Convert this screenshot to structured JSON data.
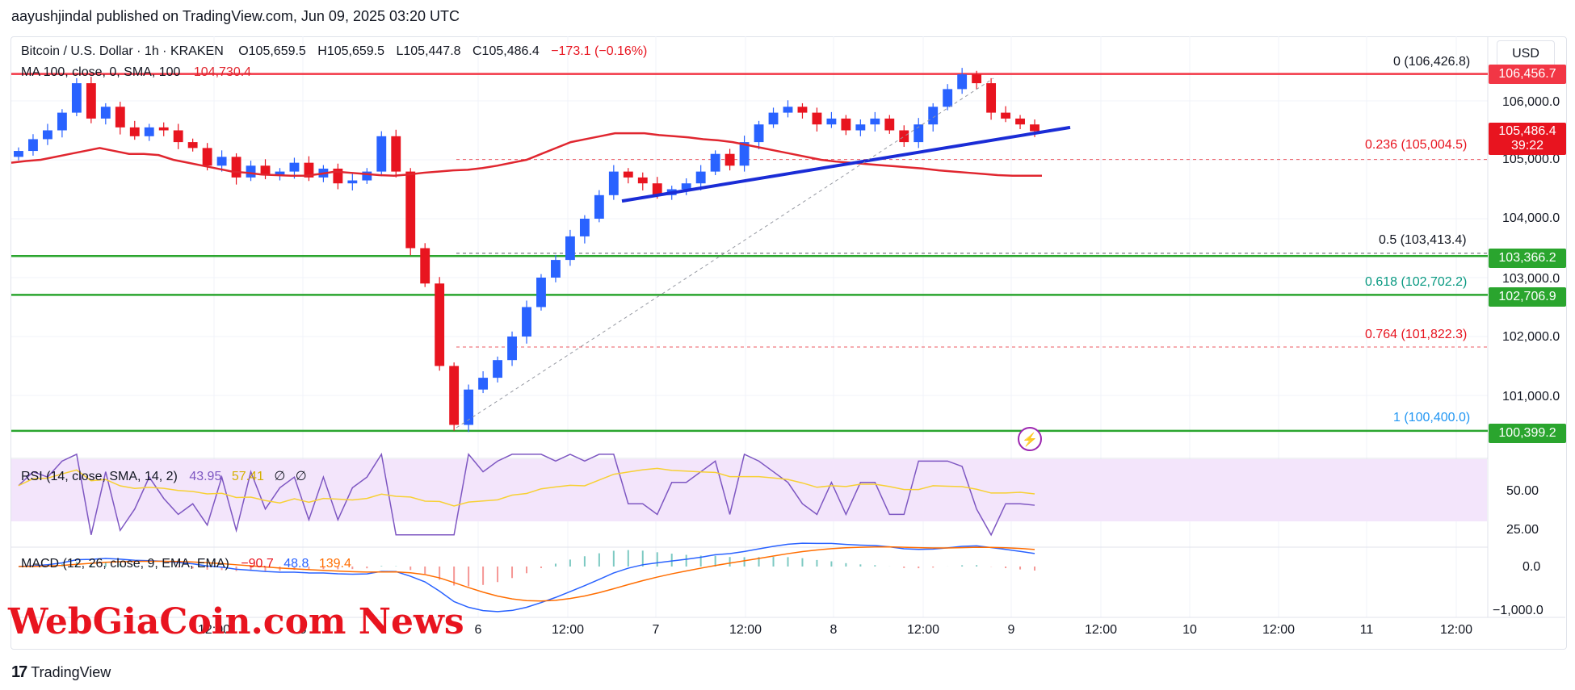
{
  "header": {
    "publisher": "aayushjindal published on TradingView.com, Jun 09, 2025 03:20 UTC"
  },
  "legend": {
    "symbol": "Bitcoin / U.S. Dollar · 1h · KRAKEN",
    "open": "O105,659.5",
    "high": "H105,659.5",
    "low": "L105,447.8",
    "close": "C105,486.4",
    "change": "−173.1 (−0.16%)",
    "ma_label": "MA 100, close, 0, SMA, 100",
    "ma_value": "104,730.4"
  },
  "currency_button": "USD",
  "price_ticks": [
    "106,000.0",
    "105,000.0",
    "104,000.0",
    "103,000.0",
    "102,000.0",
    "101,000.0"
  ],
  "axis_tags": {
    "resistance": "106,456.7",
    "current_price": "105,486.4",
    "countdown": "39:22",
    "support_1": "103,366.2",
    "support_2": "102,706.9",
    "low": "100,399.2"
  },
  "fibonacci": [
    {
      "level": "0",
      "price": "(106,426.8)",
      "color": "#787b86"
    },
    {
      "level": "0.236",
      "price": "(105,004.5)",
      "color": "#e8141f"
    },
    {
      "level": "0.5",
      "price": "(103,413.4)",
      "color": "#131722"
    },
    {
      "level": "0.618",
      "price": "(102,702.2)",
      "color": "#089981"
    },
    {
      "level": "0.764",
      "price": "(101,822.3)",
      "color": "#e8141f"
    },
    {
      "level": "1",
      "price": "(100,400.0)",
      "color": "#2196f3"
    }
  ],
  "rsi": {
    "label": "RSI (14, close, SMA, 14, 2)",
    "value": "43.95",
    "sma_value": "57.41",
    "extra1": "∅",
    "extra2": "∅",
    "ticks": [
      "50.00",
      "25.00"
    ]
  },
  "macd": {
    "label": "MACD (12, 26, close, 9, EMA, EMA)",
    "hist": "−90.7",
    "macd": "48.8",
    "signal": "139.4",
    "ticks": [
      "0.0",
      "−1,000.0"
    ]
  },
  "time_ticks": [
    "12:00",
    "5",
    "6",
    "12:00",
    "7",
    "12:00",
    "8",
    "12:00",
    "9",
    "12:00",
    "10",
    "12:00",
    "11",
    "12:00"
  ],
  "watermark": "WebGiaCoin.com News",
  "footer": {
    "brand": "TradingView",
    "logo": "17"
  },
  "colors": {
    "up": "#2962ff",
    "down": "#e8141f",
    "ma": "#e0262f",
    "trendline": "#1a2cd6",
    "support": "#2aa52e",
    "resistance": "#f23645",
    "rsi_bg": "#f3e5fb",
    "rsi_line": "#7e57c2",
    "rsi_sma": "#f7d034"
  },
  "chart_data": {
    "type": "candlestick",
    "symbol": "Bitcoin / U.S. Dollar",
    "interval": "1h",
    "x_ticks": [
      "12:00",
      "5",
      "6",
      "12:00",
      "7",
      "12:00",
      "8",
      "12:00",
      "9",
      "12:00",
      "10",
      "12:00",
      "11",
      "12:00"
    ],
    "y_range": [
      99800,
      106900
    ],
    "close_path": [
      105150,
      105350,
      105500,
      105800,
      106300,
      105700,
      105900,
      105550,
      105400,
      105550,
      105500,
      105300,
      105200,
      104900,
      105050,
      104700,
      104900,
      104750,
      104800,
      104950,
      104700,
      104850,
      104600,
      104650,
      104800,
      105400,
      104800,
      103500,
      102900,
      101500,
      100500,
      101100,
      101300,
      101600,
      102000,
      102500,
      103000,
      103300,
      103700,
      104000,
      104400,
      104800,
      104700,
      104600,
      104400,
      104500,
      104600,
      104800,
      105100,
      104900,
      105300,
      105600,
      105800,
      105900,
      105800,
      105600,
      105700,
      105500,
      105600,
      105700,
      105500,
      105300,
      105600,
      105900,
      106200,
      106450,
      106300,
      105800,
      105700,
      105600,
      105486
    ],
    "ma100_path": [
      104950,
      104980,
      105000,
      105050,
      105100,
      105150,
      105200,
      105150,
      105100,
      105100,
      105080,
      105000,
      104950,
      104900,
      104850,
      104800,
      104780,
      104750,
      104740,
      104730,
      104730,
      104760,
      104800,
      104780,
      104760,
      104740,
      104730,
      104750,
      104780,
      104800,
      104820,
      104830,
      104860,
      104900,
      104950,
      105000,
      105100,
      105200,
      105300,
      105350,
      105400,
      105450,
      105450,
      105450,
      105420,
      105400,
      105380,
      105350,
      105330,
      105300,
      105250,
      105200,
      105150,
      105100,
      105050,
      105000,
      104970,
      104950,
      104930,
      104910,
      104890,
      104870,
      104850,
      104820,
      104800,
      104780,
      104760,
      104740,
      104730,
      104730,
      104730
    ],
    "trendline": {
      "from": 104300,
      "to": 105550
    },
    "horizontal_levels": {
      "resistance": 106456.7,
      "support_1": 103366.2,
      "support_2": 102706.9,
      "low": 100399.2
    },
    "fibonacci": {
      "0": 106426.8,
      "0.236": 105004.5,
      "0.5": 103413.4,
      "0.618": 102702.2,
      "0.764": 101822.3,
      "1": 100400.0
    },
    "rsi": {
      "value": 43.95,
      "sma": 57.41,
      "levels": [
        70,
        50,
        30
      ]
    },
    "macd": {
      "histogram": -90.7,
      "macd": 48.8,
      "signal": 139.4
    }
  }
}
